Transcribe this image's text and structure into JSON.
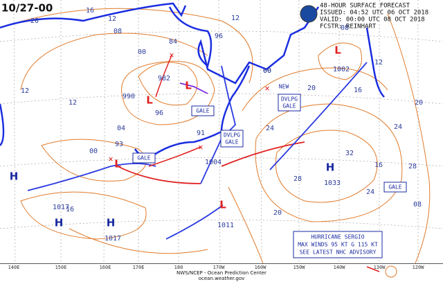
{
  "header": {
    "corner_label": "10/27-00",
    "lines": [
      "48-HOUR SURFACE FORECAST",
      "ISSUED: 04:52 UTC 06 OCT 2018",
      "VALID:  00:00 UTC 08 OCT 2018",
      "FCSTR: REINHART"
    ]
  },
  "highs": [
    {
      "label": "H"
    },
    {
      "label": "H",
      "pressure": "1017"
    },
    {
      "label": "H",
      "pressure": "1017"
    },
    {
      "label": "H",
      "pressure": "1033"
    }
  ],
  "lows": [
    {
      "label": "L",
      "pressure": "990"
    },
    {
      "label": "L",
      "pressure": "982"
    },
    {
      "label": "L",
      "pressure": "1002"
    },
    {
      "label": "L",
      "pressure": "1011"
    },
    {
      "label": "L",
      "pressure": "1004"
    }
  ],
  "storm_points": [
    "84",
    "91",
    "93",
    "00"
  ],
  "isobar_labels": [
    "20",
    "16",
    "12",
    "08",
    "00",
    "12",
    "12",
    "96",
    "04",
    "00",
    "16",
    "12",
    "96",
    "00",
    "20",
    "24",
    "28",
    "32",
    "24",
    "20",
    "16",
    "12",
    "08",
    "20",
    "24",
    "28",
    "08",
    "16"
  ],
  "boxes": [
    [
      "GALE"
    ],
    [
      "DVLPG",
      "GALE"
    ],
    [
      "DVLPG",
      "GALE"
    ],
    [
      "GALE"
    ],
    [
      "GALE"
    ],
    [
      "NEW"
    ]
  ],
  "hurricane_box": [
    "HURRICANE SERGIO",
    "MAX WINDS 95 KT G 115 KT",
    "SEE LATEST NHC ADVISORY"
  ],
  "longitudes": [
    "140E",
    "150E",
    "160E",
    "170E",
    "180",
    "170W",
    "160W",
    "150W",
    "140W",
    "130W",
    "120W"
  ],
  "footer": [
    "NWS/NCEP - Ocean Prediction Center",
    "ocean.weather.gov"
  ]
}
